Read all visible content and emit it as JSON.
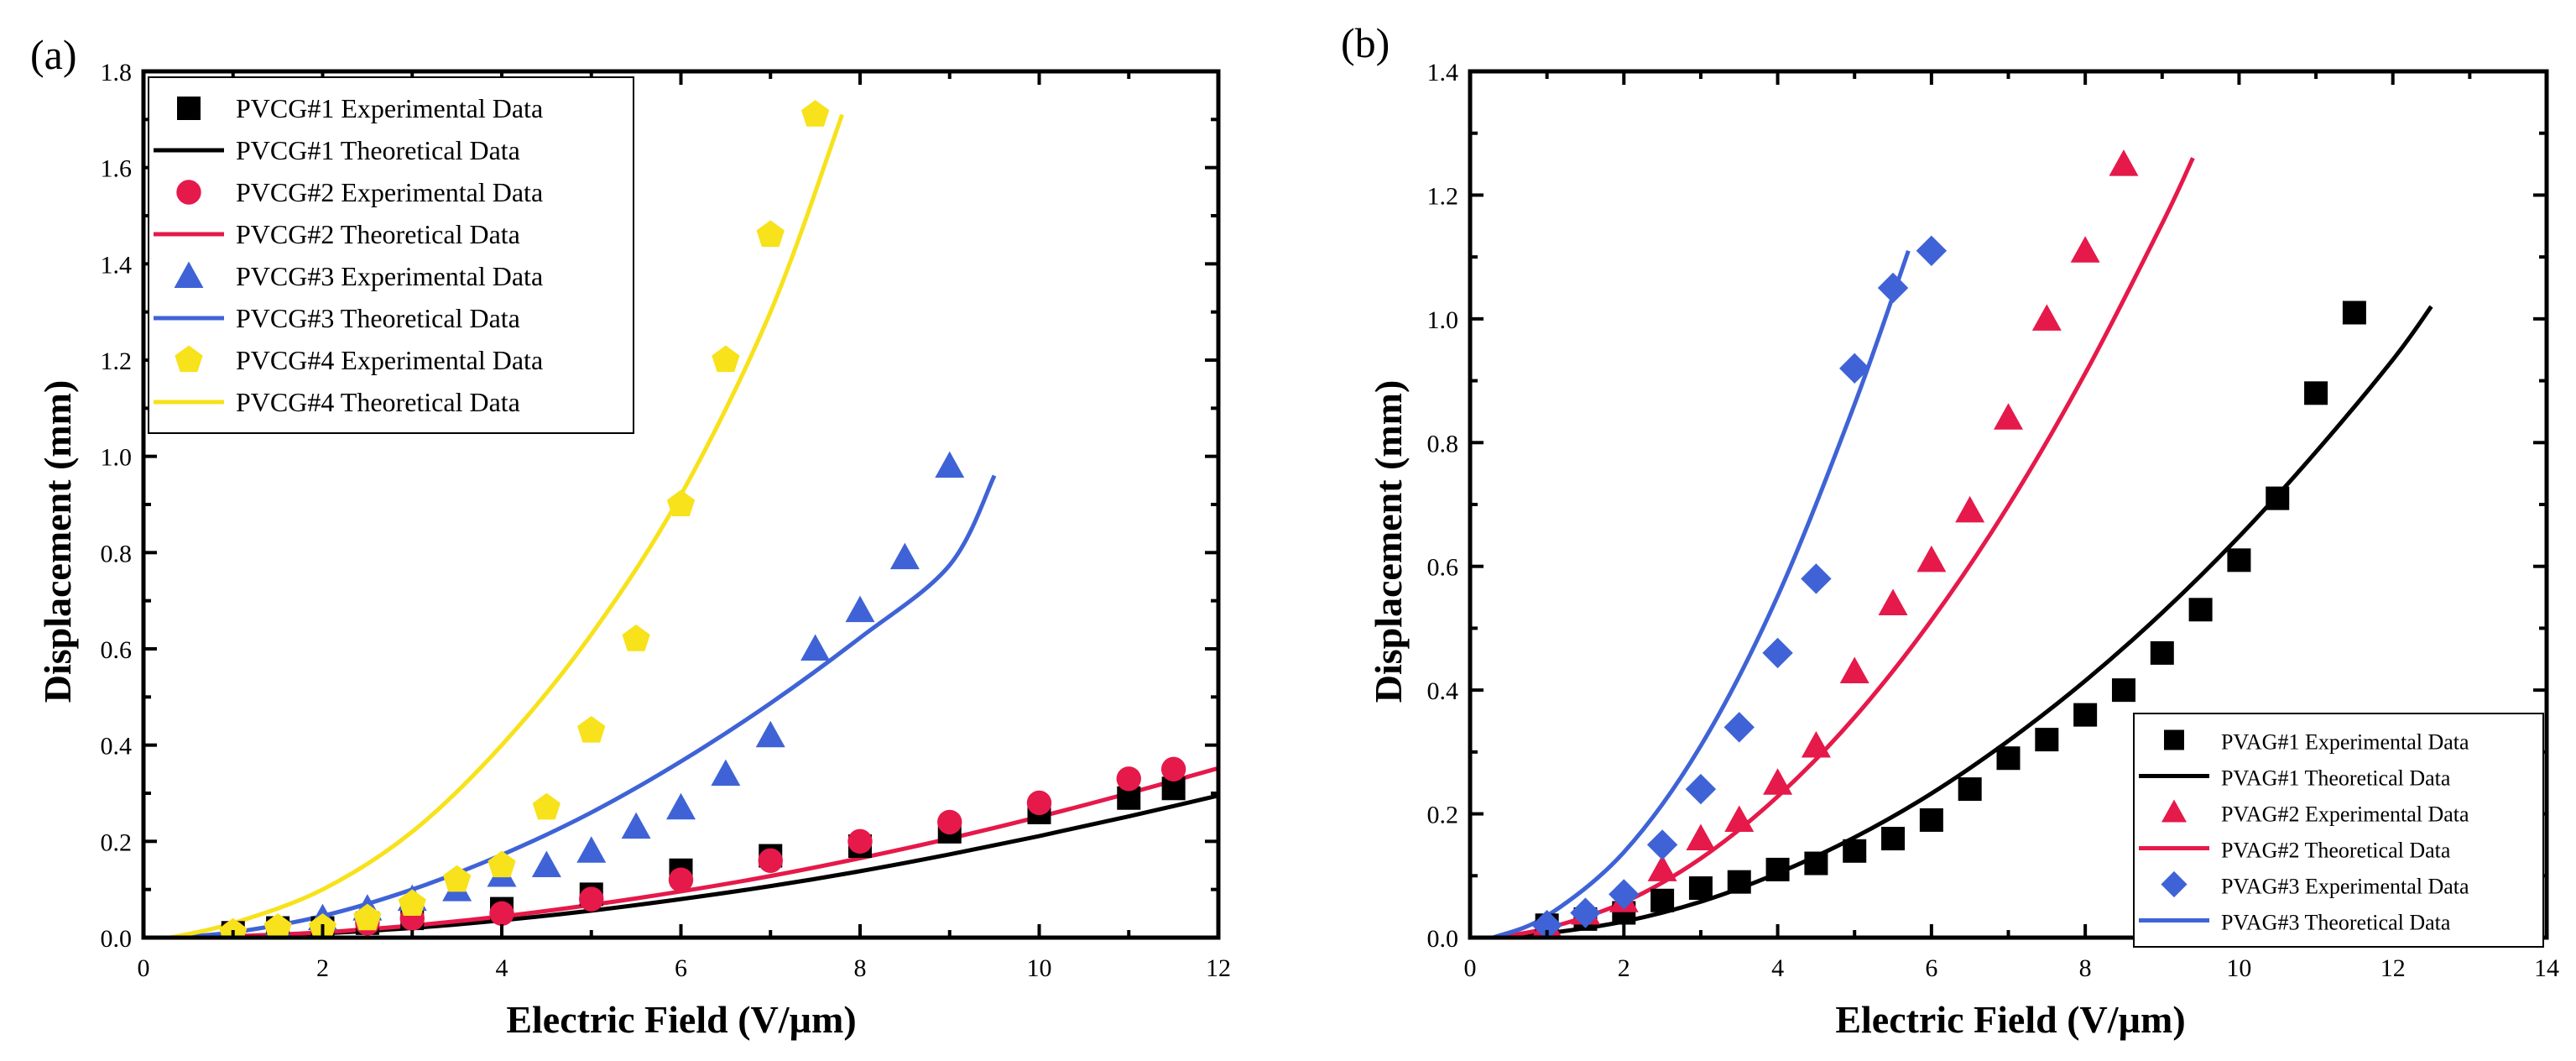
{
  "chart_data": [
    {
      "type": "scatter",
      "panel_label": "(a)",
      "xlabel": "Electric Field (V/µm)",
      "ylabel": "Displacement (mm)",
      "xlim": [
        0,
        12
      ],
      "ylim": [
        0,
        1.8
      ],
      "xticks": [
        0,
        2,
        4,
        6,
        8,
        10,
        12
      ],
      "xtick_labels": [
        "0",
        "2",
        "4",
        "6",
        "8",
        "10",
        "12"
      ],
      "yticks": [
        0.0,
        0.2,
        0.4,
        0.6,
        0.8,
        1.0,
        1.2,
        1.4,
        1.6,
        1.8
      ],
      "ytick_labels": [
        "0.0",
        "0.2",
        "0.4",
        "0.6",
        "0.8",
        "1.0",
        "1.2",
        "1.4",
        "1.6",
        "1.8"
      ],
      "legend_position": "top-left",
      "series": [
        {
          "name": "PVCG#1 Experimental Data",
          "kind": "markers",
          "marker": "square",
          "color": "#000000",
          "x": [
            1,
            1.5,
            2,
            2.5,
            3,
            4,
            5,
            6,
            7,
            8,
            9,
            10,
            11,
            11.5
          ],
          "y": [
            0.01,
            0.02,
            0.02,
            0.03,
            0.04,
            0.06,
            0.09,
            0.14,
            0.17,
            0.19,
            0.22,
            0.26,
            0.29,
            0.31
          ]
        },
        {
          "name": "PVCG#1 Theoretical Data",
          "kind": "line",
          "color": "#000000",
          "x": [
            0.3,
            1,
            2,
            3,
            4,
            5,
            6,
            7,
            8,
            9,
            10,
            11,
            12
          ],
          "y": [
            0,
            0.002,
            0.009,
            0.02,
            0.036,
            0.056,
            0.08,
            0.107,
            0.138,
            0.173,
            0.211,
            0.252,
            0.295
          ]
        },
        {
          "name": "PVCG#2 Experimental Data",
          "kind": "markers",
          "marker": "circle",
          "color": "#e5194a",
          "x": [
            1,
            2,
            2.5,
            3,
            4,
            5,
            6,
            7,
            8,
            9,
            10,
            11,
            11.5
          ],
          "y": [
            0.01,
            0.02,
            0.03,
            0.04,
            0.05,
            0.08,
            0.12,
            0.16,
            0.2,
            0.24,
            0.28,
            0.33,
            0.35
          ]
        },
        {
          "name": "PVCG#2 Theoretical Data",
          "kind": "line",
          "color": "#e5194a",
          "x": [
            0.3,
            1,
            2,
            3,
            4,
            5,
            6,
            7,
            8,
            9,
            10,
            11,
            12
          ],
          "y": [
            0,
            0.003,
            0.011,
            0.025,
            0.044,
            0.068,
            0.096,
            0.128,
            0.165,
            0.206,
            0.251,
            0.3,
            0.352
          ]
        },
        {
          "name": "PVCG#3 Experimental Data",
          "kind": "markers",
          "marker": "triangle",
          "color": "#3f63d6",
          "x": [
            1,
            1.5,
            2,
            2.5,
            3,
            3.5,
            4,
            4.5,
            5,
            5.5,
            6,
            6.5,
            7,
            7.5,
            8,
            8.5,
            9
          ],
          "y": [
            0.01,
            0.02,
            0.04,
            0.06,
            0.08,
            0.1,
            0.13,
            0.15,
            0.18,
            0.23,
            0.27,
            0.34,
            0.42,
            0.6,
            0.68,
            0.79,
            0.98
          ]
        },
        {
          "name": "PVCG#3 Theoretical Data",
          "kind": "line",
          "color": "#3f63d6",
          "x": [
            0.3,
            1,
            2,
            3,
            4,
            5,
            6,
            7,
            8,
            9,
            9.5
          ],
          "y": [
            0,
            0.011,
            0.045,
            0.1,
            0.172,
            0.26,
            0.366,
            0.487,
            0.623,
            0.774,
            0.96
          ]
        },
        {
          "name": "PVCG#4 Experimental Data",
          "kind": "markers",
          "marker": "pentagon",
          "color": "#f7e21b",
          "x": [
            1,
            1.5,
            2,
            2.5,
            3,
            3.5,
            4,
            4.5,
            5,
            5.5,
            6,
            6.5,
            7,
            7.5
          ],
          "y": [
            0.01,
            0.02,
            0.02,
            0.04,
            0.07,
            0.12,
            0.15,
            0.27,
            0.43,
            0.62,
            0.9,
            1.2,
            1.46,
            1.71
          ]
        },
        {
          "name": "PVCG#4 Theoretical Data",
          "kind": "line",
          "color": "#f7e21b",
          "x": [
            0.3,
            1,
            2,
            3,
            4,
            5,
            6,
            7,
            7.8
          ],
          "y": [
            0,
            0.03,
            0.1,
            0.22,
            0.4,
            0.63,
            0.92,
            1.3,
            1.71
          ]
        }
      ]
    },
    {
      "type": "scatter",
      "panel_label": "(b)",
      "xlabel": "Electric Field (V/µm)",
      "ylabel": "Displacement (mm)",
      "xlim": [
        0,
        14
      ],
      "ylim": [
        0,
        1.4
      ],
      "xticks": [
        0,
        2,
        4,
        6,
        8,
        10,
        12,
        14
      ],
      "xtick_labels": [
        "0",
        "2",
        "4",
        "6",
        "8",
        "10",
        "12",
        "14"
      ],
      "yticks": [
        0.0,
        0.2,
        0.4,
        0.6,
        0.8,
        1.0,
        1.2,
        1.4
      ],
      "ytick_labels": [
        "0.0",
        "0.2",
        "0.4",
        "0.6",
        "0.8",
        "1.0",
        "1.2",
        "1.4"
      ],
      "legend_position": "bottom-right",
      "series": [
        {
          "name": "PVAG#1 Experimental Data",
          "kind": "markers",
          "marker": "square",
          "color": "#000000",
          "x": [
            1,
            1.5,
            2,
            2.5,
            3,
            3.5,
            4,
            4.5,
            5,
            5.5,
            6,
            6.5,
            7,
            7.5,
            8,
            8.5,
            9,
            9.5,
            10,
            10.5,
            11,
            11.5
          ],
          "y": [
            0.02,
            0.03,
            0.04,
            0.06,
            0.08,
            0.09,
            0.11,
            0.12,
            0.14,
            0.16,
            0.19,
            0.24,
            0.29,
            0.32,
            0.36,
            0.4,
            0.46,
            0.53,
            0.61,
            0.71,
            0.88,
            1.01
          ]
        },
        {
          "name": "PVAG#1 Theoretical Data",
          "kind": "line",
          "color": "#000000",
          "x": [
            0.3,
            1,
            2,
            3,
            4,
            5,
            6,
            7,
            8,
            9,
            10,
            11,
            12,
            12.5
          ],
          "y": [
            0,
            0.007,
            0.026,
            0.058,
            0.104,
            0.162,
            0.233,
            0.318,
            0.415,
            0.525,
            0.648,
            0.785,
            0.934,
            1.02
          ]
        },
        {
          "name": "PVAG#2 Experimental Data",
          "kind": "markers",
          "marker": "triangle",
          "color": "#e5194a",
          "x": [
            1,
            1.5,
            2,
            2.5,
            3,
            3.5,
            4,
            4.5,
            5,
            5.5,
            6,
            6.5,
            7,
            7.5,
            8,
            8.5
          ],
          "y": [
            0.02,
            0.04,
            0.06,
            0.11,
            0.16,
            0.19,
            0.25,
            0.31,
            0.43,
            0.54,
            0.61,
            0.69,
            0.84,
            1.0,
            1.11,
            1.25
          ]
        },
        {
          "name": "PVAG#2 Theoretical Data",
          "kind": "line",
          "color": "#e5194a",
          "x": [
            0.3,
            1,
            2,
            3,
            4,
            5,
            6,
            7,
            8,
            9,
            9.4
          ],
          "y": [
            0,
            0.015,
            0.057,
            0.128,
            0.228,
            0.356,
            0.513,
            0.698,
            0.912,
            1.154,
            1.26
          ]
        },
        {
          "name": "PVAG#3 Experimental Data",
          "kind": "markers",
          "marker": "diamond",
          "color": "#3f63d6",
          "x": [
            1,
            1.5,
            2,
            2.5,
            3,
            3.5,
            4,
            4.5,
            5,
            5.5,
            6
          ],
          "y": [
            0.02,
            0.04,
            0.07,
            0.15,
            0.24,
            0.34,
            0.46,
            0.58,
            0.92,
            1.05,
            1.11
          ]
        },
        {
          "name": "PVAG#3 Theoretical Data",
          "kind": "line",
          "color": "#3f63d6",
          "x": [
            0.3,
            1,
            2,
            3,
            4,
            5,
            5.7
          ],
          "y": [
            0,
            0.035,
            0.138,
            0.31,
            0.552,
            0.862,
            1.11
          ]
        }
      ]
    }
  ]
}
